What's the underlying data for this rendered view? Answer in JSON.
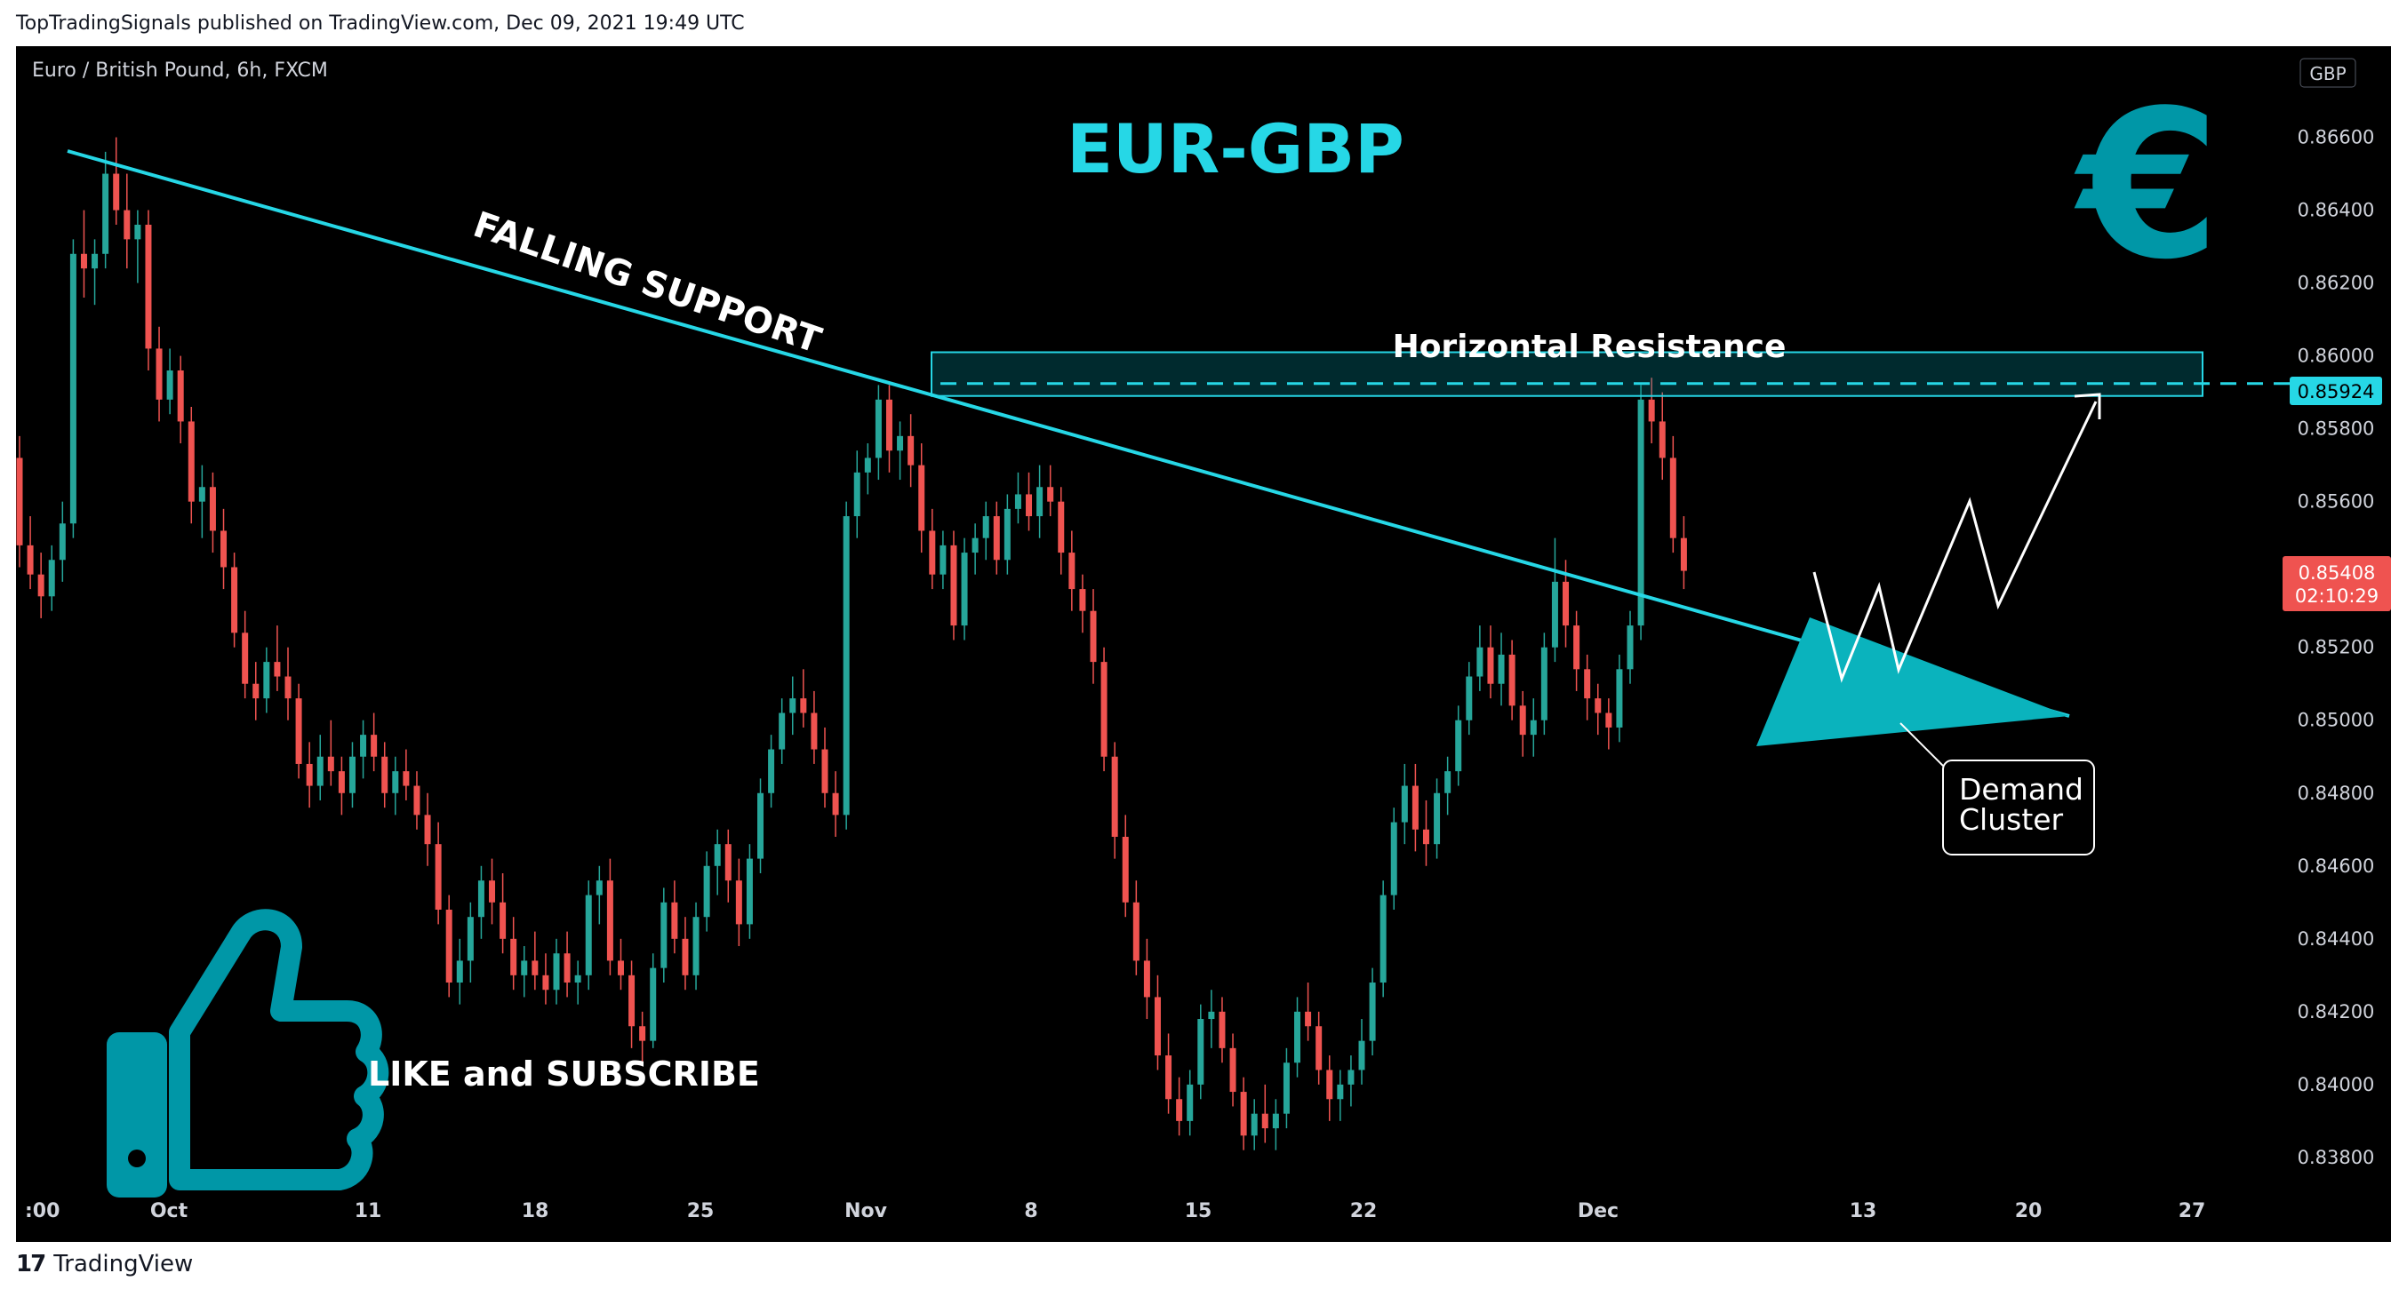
{
  "header": {
    "published": "TopTradingSignals published on TradingView.com, Dec 09, 2021 19:49 UTC"
  },
  "footer": {
    "logo_mark": "17",
    "brand": "TradingView"
  },
  "chart_data": {
    "type": "candlestick",
    "symbol": "Euro / British Pound, 6h, FXCM",
    "title": "EUR-GBP",
    "currency": "GBP",
    "annotations": {
      "falling_support": "FALLING SUPPORT",
      "horizontal_resistance": "Horizontal Resistance",
      "demand_cluster_1": "Demand",
      "demand_cluster_2": "Cluster",
      "cta": "LIKE and SUBSCRIBE"
    },
    "x_ticks": [
      ":00",
      "Oct",
      "11",
      "18",
      "25",
      "Nov",
      "8",
      "15",
      "22",
      "Dec",
      "13",
      "20",
      "27"
    ],
    "y_ticks": [
      "0.86600",
      "0.86400",
      "0.86200",
      "0.86000",
      "0.85800",
      "0.85600",
      "0.85200",
      "0.85000",
      "0.84800",
      "0.84600",
      "0.84400",
      "0.84200",
      "0.84000",
      "0.83800"
    ],
    "ylim": [
      0.8369,
      0.8685
    ],
    "resistance_level": "0.85924",
    "last_price": "0.85408",
    "countdown": "02:10:29",
    "colors": {
      "up": "#26a69a",
      "down": "#ef5350",
      "accent": "#26d7e6",
      "zone": "#0097a7",
      "background": "#000000"
    },
    "candles": [
      {
        "o": 0.8572,
        "h": 0.8578,
        "l": 0.8542,
        "c": 0.8548
      },
      {
        "o": 0.8548,
        "h": 0.8556,
        "l": 0.8536,
        "c": 0.854
      },
      {
        "o": 0.854,
        "h": 0.8546,
        "l": 0.8528,
        "c": 0.8534
      },
      {
        "o": 0.8534,
        "h": 0.8548,
        "l": 0.853,
        "c": 0.8544
      },
      {
        "o": 0.8544,
        "h": 0.856,
        "l": 0.8538,
        "c": 0.8554
      },
      {
        "o": 0.8554,
        "h": 0.8632,
        "l": 0.855,
        "c": 0.8628
      },
      {
        "o": 0.8628,
        "h": 0.864,
        "l": 0.8616,
        "c": 0.8624
      },
      {
        "o": 0.8624,
        "h": 0.8632,
        "l": 0.8614,
        "c": 0.8628
      },
      {
        "o": 0.8628,
        "h": 0.8656,
        "l": 0.8624,
        "c": 0.865
      },
      {
        "o": 0.865,
        "h": 0.866,
        "l": 0.8636,
        "c": 0.864
      },
      {
        "o": 0.864,
        "h": 0.865,
        "l": 0.8624,
        "c": 0.8632
      },
      {
        "o": 0.8632,
        "h": 0.864,
        "l": 0.862,
        "c": 0.8636
      },
      {
        "o": 0.8636,
        "h": 0.864,
        "l": 0.8596,
        "c": 0.8602
      },
      {
        "o": 0.8602,
        "h": 0.8608,
        "l": 0.8582,
        "c": 0.8588
      },
      {
        "o": 0.8588,
        "h": 0.8602,
        "l": 0.8584,
        "c": 0.8596
      },
      {
        "o": 0.8596,
        "h": 0.86,
        "l": 0.8576,
        "c": 0.8582
      },
      {
        "o": 0.8582,
        "h": 0.8586,
        "l": 0.8554,
        "c": 0.856
      },
      {
        "o": 0.856,
        "h": 0.857,
        "l": 0.855,
        "c": 0.8564
      },
      {
        "o": 0.8564,
        "h": 0.8568,
        "l": 0.8546,
        "c": 0.8552
      },
      {
        "o": 0.8552,
        "h": 0.8558,
        "l": 0.8536,
        "c": 0.8542
      },
      {
        "o": 0.8542,
        "h": 0.8546,
        "l": 0.852,
        "c": 0.8524
      },
      {
        "o": 0.8524,
        "h": 0.853,
        "l": 0.8506,
        "c": 0.851
      },
      {
        "o": 0.851,
        "h": 0.8516,
        "l": 0.85,
        "c": 0.8506
      },
      {
        "o": 0.8506,
        "h": 0.852,
        "l": 0.8502,
        "c": 0.8516
      },
      {
        "o": 0.8516,
        "h": 0.8526,
        "l": 0.8508,
        "c": 0.8512
      },
      {
        "o": 0.8512,
        "h": 0.852,
        "l": 0.85,
        "c": 0.8506
      },
      {
        "o": 0.8506,
        "h": 0.851,
        "l": 0.8484,
        "c": 0.8488
      },
      {
        "o": 0.8488,
        "h": 0.8494,
        "l": 0.8476,
        "c": 0.8482
      },
      {
        "o": 0.8482,
        "h": 0.8496,
        "l": 0.8478,
        "c": 0.849
      },
      {
        "o": 0.849,
        "h": 0.85,
        "l": 0.8482,
        "c": 0.8486
      },
      {
        "o": 0.8486,
        "h": 0.849,
        "l": 0.8474,
        "c": 0.848
      },
      {
        "o": 0.848,
        "h": 0.8494,
        "l": 0.8476,
        "c": 0.849
      },
      {
        "o": 0.849,
        "h": 0.85,
        "l": 0.8484,
        "c": 0.8496
      },
      {
        "o": 0.8496,
        "h": 0.8502,
        "l": 0.8486,
        "c": 0.849
      },
      {
        "o": 0.849,
        "h": 0.8494,
        "l": 0.8476,
        "c": 0.848
      },
      {
        "o": 0.848,
        "h": 0.849,
        "l": 0.8474,
        "c": 0.8486
      },
      {
        "o": 0.8486,
        "h": 0.8492,
        "l": 0.8478,
        "c": 0.8482
      },
      {
        "o": 0.8482,
        "h": 0.8486,
        "l": 0.847,
        "c": 0.8474
      },
      {
        "o": 0.8474,
        "h": 0.848,
        "l": 0.846,
        "c": 0.8466
      },
      {
        "o": 0.8466,
        "h": 0.8472,
        "l": 0.8444,
        "c": 0.8448
      },
      {
        "o": 0.8448,
        "h": 0.8452,
        "l": 0.8424,
        "c": 0.8428
      },
      {
        "o": 0.8428,
        "h": 0.844,
        "l": 0.8422,
        "c": 0.8434
      },
      {
        "o": 0.8434,
        "h": 0.845,
        "l": 0.8428,
        "c": 0.8446
      },
      {
        "o": 0.8446,
        "h": 0.846,
        "l": 0.844,
        "c": 0.8456
      },
      {
        "o": 0.8456,
        "h": 0.8462,
        "l": 0.8444,
        "c": 0.845
      },
      {
        "o": 0.845,
        "h": 0.8458,
        "l": 0.8436,
        "c": 0.844
      },
      {
        "o": 0.844,
        "h": 0.8446,
        "l": 0.8426,
        "c": 0.843
      },
      {
        "o": 0.843,
        "h": 0.8438,
        "l": 0.8424,
        "c": 0.8434
      },
      {
        "o": 0.8434,
        "h": 0.8442,
        "l": 0.8426,
        "c": 0.843
      },
      {
        "o": 0.843,
        "h": 0.8436,
        "l": 0.8422,
        "c": 0.8426
      },
      {
        "o": 0.8426,
        "h": 0.844,
        "l": 0.8422,
        "c": 0.8436
      },
      {
        "o": 0.8436,
        "h": 0.8442,
        "l": 0.8424,
        "c": 0.8428
      },
      {
        "o": 0.8428,
        "h": 0.8434,
        "l": 0.8422,
        "c": 0.843
      },
      {
        "o": 0.843,
        "h": 0.8456,
        "l": 0.8426,
        "c": 0.8452
      },
      {
        "o": 0.8452,
        "h": 0.846,
        "l": 0.8444,
        "c": 0.8456
      },
      {
        "o": 0.8456,
        "h": 0.8462,
        "l": 0.843,
        "c": 0.8434
      },
      {
        "o": 0.8434,
        "h": 0.844,
        "l": 0.8426,
        "c": 0.843
      },
      {
        "o": 0.843,
        "h": 0.8434,
        "l": 0.841,
        "c": 0.8416
      },
      {
        "o": 0.8416,
        "h": 0.842,
        "l": 0.8406,
        "c": 0.8412
      },
      {
        "o": 0.8412,
        "h": 0.8436,
        "l": 0.841,
        "c": 0.8432
      },
      {
        "o": 0.8432,
        "h": 0.8454,
        "l": 0.8428,
        "c": 0.845
      },
      {
        "o": 0.845,
        "h": 0.8456,
        "l": 0.8436,
        "c": 0.844
      },
      {
        "o": 0.844,
        "h": 0.8446,
        "l": 0.8426,
        "c": 0.843
      },
      {
        "o": 0.843,
        "h": 0.845,
        "l": 0.8426,
        "c": 0.8446
      },
      {
        "o": 0.8446,
        "h": 0.8464,
        "l": 0.8442,
        "c": 0.846
      },
      {
        "o": 0.846,
        "h": 0.847,
        "l": 0.8452,
        "c": 0.8466
      },
      {
        "o": 0.8466,
        "h": 0.847,
        "l": 0.845,
        "c": 0.8456
      },
      {
        "o": 0.8456,
        "h": 0.8462,
        "l": 0.8438,
        "c": 0.8444
      },
      {
        "o": 0.8444,
        "h": 0.8466,
        "l": 0.844,
        "c": 0.8462
      },
      {
        "o": 0.8462,
        "h": 0.8484,
        "l": 0.8458,
        "c": 0.848
      },
      {
        "o": 0.848,
        "h": 0.8496,
        "l": 0.8476,
        "c": 0.8492
      },
      {
        "o": 0.8492,
        "h": 0.8506,
        "l": 0.8488,
        "c": 0.8502
      },
      {
        "o": 0.8502,
        "h": 0.8512,
        "l": 0.8496,
        "c": 0.8506
      },
      {
        "o": 0.8506,
        "h": 0.8514,
        "l": 0.8498,
        "c": 0.8502
      },
      {
        "o": 0.8502,
        "h": 0.8508,
        "l": 0.8488,
        "c": 0.8492
      },
      {
        "o": 0.8492,
        "h": 0.8498,
        "l": 0.8476,
        "c": 0.848
      },
      {
        "o": 0.848,
        "h": 0.8486,
        "l": 0.8468,
        "c": 0.8474
      },
      {
        "o": 0.8474,
        "h": 0.856,
        "l": 0.847,
        "c": 0.8556
      },
      {
        "o": 0.8556,
        "h": 0.8574,
        "l": 0.855,
        "c": 0.8568
      },
      {
        "o": 0.8568,
        "h": 0.8576,
        "l": 0.8562,
        "c": 0.8572
      },
      {
        "o": 0.8572,
        "h": 0.8592,
        "l": 0.8566,
        "c": 0.8588
      },
      {
        "o": 0.8588,
        "h": 0.8592,
        "l": 0.8568,
        "c": 0.8574
      },
      {
        "o": 0.8574,
        "h": 0.8582,
        "l": 0.8566,
        "c": 0.8578
      },
      {
        "o": 0.8578,
        "h": 0.8584,
        "l": 0.8564,
        "c": 0.857
      },
      {
        "o": 0.857,
        "h": 0.8576,
        "l": 0.8546,
        "c": 0.8552
      },
      {
        "o": 0.8552,
        "h": 0.8558,
        "l": 0.8536,
        "c": 0.854
      },
      {
        "o": 0.854,
        "h": 0.8552,
        "l": 0.8536,
        "c": 0.8548
      },
      {
        "o": 0.8548,
        "h": 0.8552,
        "l": 0.8522,
        "c": 0.8526
      },
      {
        "o": 0.8526,
        "h": 0.855,
        "l": 0.8522,
        "c": 0.8546
      },
      {
        "o": 0.8546,
        "h": 0.8554,
        "l": 0.854,
        "c": 0.855
      },
      {
        "o": 0.855,
        "h": 0.856,
        "l": 0.8544,
        "c": 0.8556
      },
      {
        "o": 0.8556,
        "h": 0.856,
        "l": 0.854,
        "c": 0.8544
      },
      {
        "o": 0.8544,
        "h": 0.8562,
        "l": 0.854,
        "c": 0.8558
      },
      {
        "o": 0.8558,
        "h": 0.8568,
        "l": 0.8554,
        "c": 0.8562
      },
      {
        "o": 0.8562,
        "h": 0.8568,
        "l": 0.8552,
        "c": 0.8556
      },
      {
        "o": 0.8556,
        "h": 0.857,
        "l": 0.855,
        "c": 0.8564
      },
      {
        "o": 0.8564,
        "h": 0.857,
        "l": 0.8556,
        "c": 0.856
      },
      {
        "o": 0.856,
        "h": 0.8564,
        "l": 0.854,
        "c": 0.8546
      },
      {
        "o": 0.8546,
        "h": 0.8552,
        "l": 0.853,
        "c": 0.8536
      },
      {
        "o": 0.8536,
        "h": 0.854,
        "l": 0.8524,
        "c": 0.853
      },
      {
        "o": 0.853,
        "h": 0.8536,
        "l": 0.851,
        "c": 0.8516
      },
      {
        "o": 0.8516,
        "h": 0.852,
        "l": 0.8486,
        "c": 0.849
      },
      {
        "o": 0.849,
        "h": 0.8494,
        "l": 0.8462,
        "c": 0.8468
      },
      {
        "o": 0.8468,
        "h": 0.8474,
        "l": 0.8446,
        "c": 0.845
      },
      {
        "o": 0.845,
        "h": 0.8456,
        "l": 0.843,
        "c": 0.8434
      },
      {
        "o": 0.8434,
        "h": 0.844,
        "l": 0.8418,
        "c": 0.8424
      },
      {
        "o": 0.8424,
        "h": 0.843,
        "l": 0.8404,
        "c": 0.8408
      },
      {
        "o": 0.8408,
        "h": 0.8414,
        "l": 0.8392,
        "c": 0.8396
      },
      {
        "o": 0.8396,
        "h": 0.8402,
        "l": 0.8386,
        "c": 0.839
      },
      {
        "o": 0.839,
        "h": 0.8404,
        "l": 0.8386,
        "c": 0.84
      },
      {
        "o": 0.84,
        "h": 0.8422,
        "l": 0.8396,
        "c": 0.8418
      },
      {
        "o": 0.8418,
        "h": 0.8426,
        "l": 0.841,
        "c": 0.842
      },
      {
        "o": 0.842,
        "h": 0.8424,
        "l": 0.8406,
        "c": 0.841
      },
      {
        "o": 0.841,
        "h": 0.8414,
        "l": 0.8394,
        "c": 0.8398
      },
      {
        "o": 0.8398,
        "h": 0.8402,
        "l": 0.8382,
        "c": 0.8386
      },
      {
        "o": 0.8386,
        "h": 0.8396,
        "l": 0.8382,
        "c": 0.8392
      },
      {
        "o": 0.8392,
        "h": 0.84,
        "l": 0.8384,
        "c": 0.8388
      },
      {
        "o": 0.8388,
        "h": 0.8396,
        "l": 0.8382,
        "c": 0.8392
      },
      {
        "o": 0.8392,
        "h": 0.841,
        "l": 0.8388,
        "c": 0.8406
      },
      {
        "o": 0.8406,
        "h": 0.8424,
        "l": 0.8402,
        "c": 0.842
      },
      {
        "o": 0.842,
        "h": 0.8428,
        "l": 0.8412,
        "c": 0.8416
      },
      {
        "o": 0.8416,
        "h": 0.842,
        "l": 0.84,
        "c": 0.8404
      },
      {
        "o": 0.8404,
        "h": 0.8408,
        "l": 0.839,
        "c": 0.8396
      },
      {
        "o": 0.8396,
        "h": 0.8404,
        "l": 0.839,
        "c": 0.84
      },
      {
        "o": 0.84,
        "h": 0.8408,
        "l": 0.8394,
        "c": 0.8404
      },
      {
        "o": 0.8404,
        "h": 0.8418,
        "l": 0.84,
        "c": 0.8412
      },
      {
        "o": 0.8412,
        "h": 0.8432,
        "l": 0.8408,
        "c": 0.8428
      },
      {
        "o": 0.8428,
        "h": 0.8456,
        "l": 0.8424,
        "c": 0.8452
      },
      {
        "o": 0.8452,
        "h": 0.8476,
        "l": 0.8448,
        "c": 0.8472
      },
      {
        "o": 0.8472,
        "h": 0.8488,
        "l": 0.8466,
        "c": 0.8482
      },
      {
        "o": 0.8482,
        "h": 0.8488,
        "l": 0.8464,
        "c": 0.847
      },
      {
        "o": 0.847,
        "h": 0.8478,
        "l": 0.846,
        "c": 0.8466
      },
      {
        "o": 0.8466,
        "h": 0.8484,
        "l": 0.8462,
        "c": 0.848
      },
      {
        "o": 0.848,
        "h": 0.849,
        "l": 0.8474,
        "c": 0.8486
      },
      {
        "o": 0.8486,
        "h": 0.8504,
        "l": 0.8482,
        "c": 0.85
      },
      {
        "o": 0.85,
        "h": 0.8516,
        "l": 0.8496,
        "c": 0.8512
      },
      {
        "o": 0.8512,
        "h": 0.8526,
        "l": 0.8508,
        "c": 0.852
      },
      {
        "o": 0.852,
        "h": 0.8526,
        "l": 0.8506,
        "c": 0.851
      },
      {
        "o": 0.851,
        "h": 0.8524,
        "l": 0.8504,
        "c": 0.8518
      },
      {
        "o": 0.8518,
        "h": 0.8522,
        "l": 0.85,
        "c": 0.8504
      },
      {
        "o": 0.8504,
        "h": 0.8508,
        "l": 0.849,
        "c": 0.8496
      },
      {
        "o": 0.8496,
        "h": 0.8506,
        "l": 0.849,
        "c": 0.85
      },
      {
        "o": 0.85,
        "h": 0.8524,
        "l": 0.8496,
        "c": 0.852
      },
      {
        "o": 0.852,
        "h": 0.855,
        "l": 0.8516,
        "c": 0.8538
      },
      {
        "o": 0.8538,
        "h": 0.8544,
        "l": 0.852,
        "c": 0.8526
      },
      {
        "o": 0.8526,
        "h": 0.853,
        "l": 0.8508,
        "c": 0.8514
      },
      {
        "o": 0.8514,
        "h": 0.8518,
        "l": 0.85,
        "c": 0.8506
      },
      {
        "o": 0.8506,
        "h": 0.851,
        "l": 0.8496,
        "c": 0.8502
      },
      {
        "o": 0.8502,
        "h": 0.8506,
        "l": 0.8492,
        "c": 0.8498
      },
      {
        "o": 0.8498,
        "h": 0.8518,
        "l": 0.8494,
        "c": 0.8514
      },
      {
        "o": 0.8514,
        "h": 0.853,
        "l": 0.851,
        "c": 0.8526
      },
      {
        "o": 0.8526,
        "h": 0.8592,
        "l": 0.8522,
        "c": 0.8588
      },
      {
        "o": 0.8588,
        "h": 0.8594,
        "l": 0.8576,
        "c": 0.8582
      },
      {
        "o": 0.8582,
        "h": 0.859,
        "l": 0.8566,
        "c": 0.8572
      },
      {
        "o": 0.8572,
        "h": 0.8578,
        "l": 0.8546,
        "c": 0.855
      },
      {
        "o": 0.855,
        "h": 0.8556,
        "l": 0.8536,
        "c": 0.8541
      }
    ]
  }
}
